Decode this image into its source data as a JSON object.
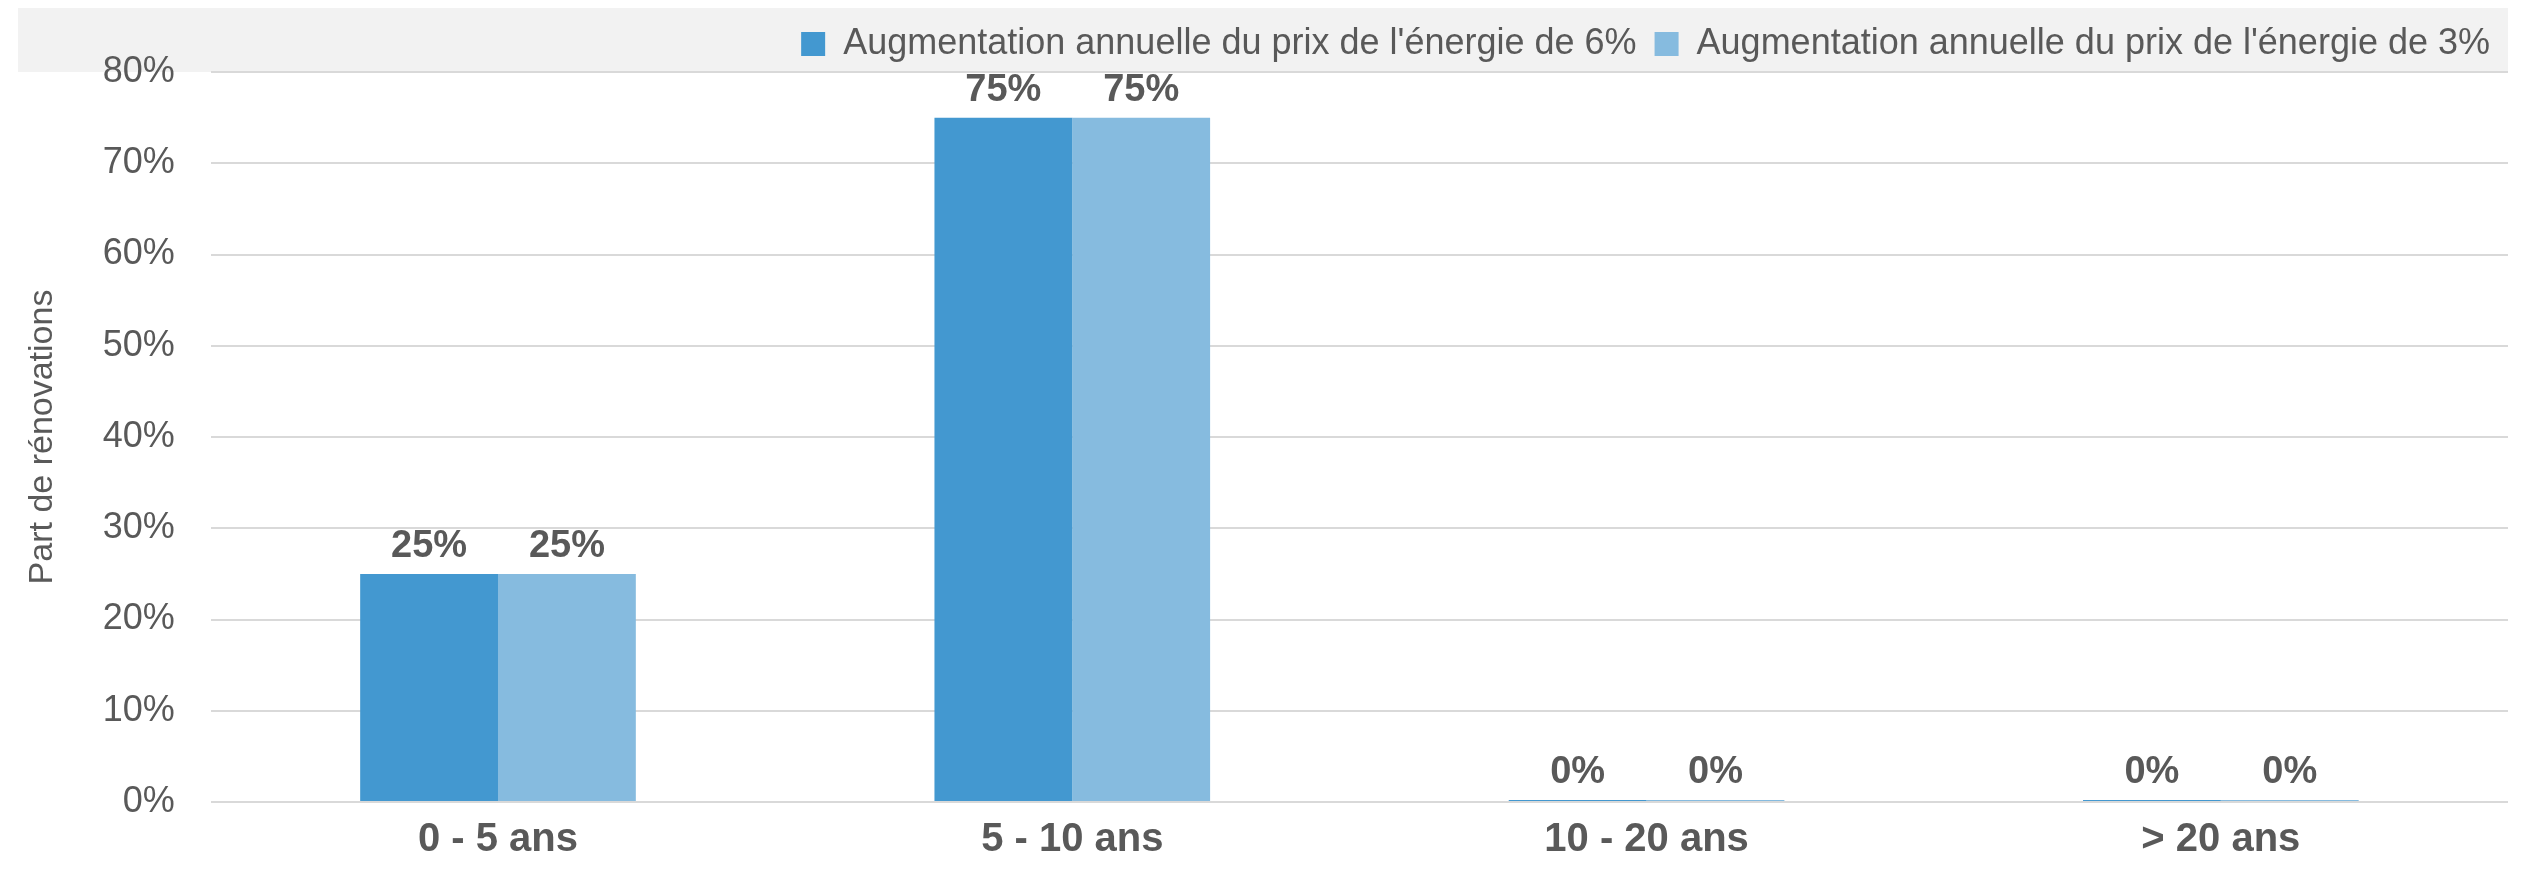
{
  "chart_data": {
    "type": "bar",
    "ylabel": "Part de rénovations",
    "categories": [
      "0 - 5 ans",
      "5 - 10 ans",
      "10 - 20 ans",
      "> 20 ans"
    ],
    "series": [
      {
        "name": "Augmentation annuelle du prix de l'énergie de 6%",
        "color": "#4398d0",
        "values": [
          25,
          75,
          0,
          0
        ],
        "value_labels": [
          "25%",
          "75%",
          "0%",
          "0%"
        ]
      },
      {
        "name": "Augmentation annuelle du prix de l'énergie de 3%",
        "color": "#86bbdf",
        "values": [
          25,
          75,
          0,
          0
        ],
        "value_labels": [
          "25%",
          "75%",
          "0%",
          "0%"
        ]
      }
    ],
    "ylim": [
      0,
      80
    ],
    "yticks": [
      {
        "value": 0,
        "label": "0%"
      },
      {
        "value": 10,
        "label": "10%"
      },
      {
        "value": 20,
        "label": "20%"
      },
      {
        "value": 30,
        "label": "30%"
      },
      {
        "value": 40,
        "label": "40%"
      },
      {
        "value": 50,
        "label": "50%"
      },
      {
        "value": 60,
        "label": "60%"
      },
      {
        "value": 70,
        "label": "70%"
      },
      {
        "value": 80,
        "label": "80%"
      }
    ],
    "grid": "y",
    "legend": "top right"
  }
}
